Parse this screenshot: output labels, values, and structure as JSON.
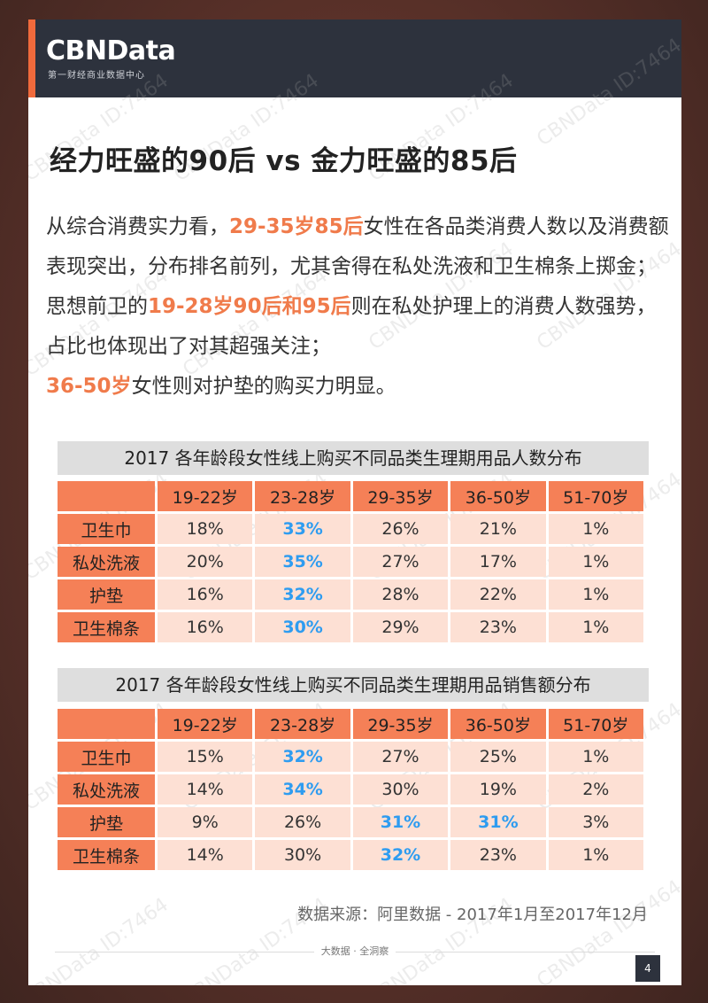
{
  "header": {
    "logo": "CBNData",
    "logo_sub": "第一财经商业数据中心"
  },
  "title": "经力旺盛的90后 vs 金力旺盛的85后",
  "intro": {
    "t1": "从综合消费实力看，",
    "h1": "29-35岁85后",
    "t2": "女性在各品类消费人数以及消费额表现突出，分布排名前列，尤其舍得在私处洗液和卫生棉条上掷金；思想前卫的",
    "h2": "19-28岁90后和95后",
    "t3": "则在私处护理上的消费人数强势，占比也体现出了对其超强关注；",
    "h3": "36-50岁",
    "t4": "女性则对护垫的购买力明显。"
  },
  "table1": {
    "title": "2017 各年龄段女性线上购买不同品类生理期用品人数分布",
    "columns": [
      "",
      "19-22岁",
      "23-28岁",
      "29-35岁",
      "36-50岁",
      "51-70岁"
    ],
    "rows": [
      {
        "label": "卫生巾",
        "cells": [
          "18%",
          "33%",
          "26%",
          "21%",
          "1%"
        ],
        "blue": [
          1
        ]
      },
      {
        "label": "私处洗液",
        "cells": [
          "20%",
          "35%",
          "27%",
          "17%",
          "1%"
        ],
        "blue": [
          1
        ]
      },
      {
        "label": "护垫",
        "cells": [
          "16%",
          "32%",
          "28%",
          "22%",
          "1%"
        ],
        "blue": [
          1
        ]
      },
      {
        "label": "卫生棉条",
        "cells": [
          "16%",
          "30%",
          "29%",
          "23%",
          "1%"
        ],
        "blue": [
          1
        ]
      }
    ]
  },
  "table2": {
    "title": "2017 各年龄段女性线上购买不同品类生理期用品销售额分布",
    "columns": [
      "",
      "19-22岁",
      "23-28岁",
      "29-35岁",
      "36-50岁",
      "51-70岁"
    ],
    "rows": [
      {
        "label": "卫生巾",
        "cells": [
          "15%",
          "32%",
          "27%",
          "25%",
          "1%"
        ],
        "blue": [
          1
        ]
      },
      {
        "label": "私处洗液",
        "cells": [
          "14%",
          "34%",
          "30%",
          "19%",
          "2%"
        ],
        "blue": [
          1
        ]
      },
      {
        "label": "护垫",
        "cells": [
          "9%",
          "26%",
          "31%",
          "31%",
          "3%"
        ],
        "blue": [
          2,
          3
        ]
      },
      {
        "label": "卫生棉条",
        "cells": [
          "14%",
          "30%",
          "32%",
          "23%",
          "1%"
        ],
        "blue": [
          2
        ]
      }
    ]
  },
  "source": "数据来源：阿里数据 - 2017年1月至2017年12月",
  "footer": {
    "text": "大数据 · 全洞察",
    "page": "4"
  },
  "watermark": "CBNData ID:7464",
  "colors": {
    "accent": "#f06a3c",
    "header_bg": "#2d323d",
    "highlight_blue": "#2e9cf0",
    "cell_bg": "#fde0d4"
  }
}
